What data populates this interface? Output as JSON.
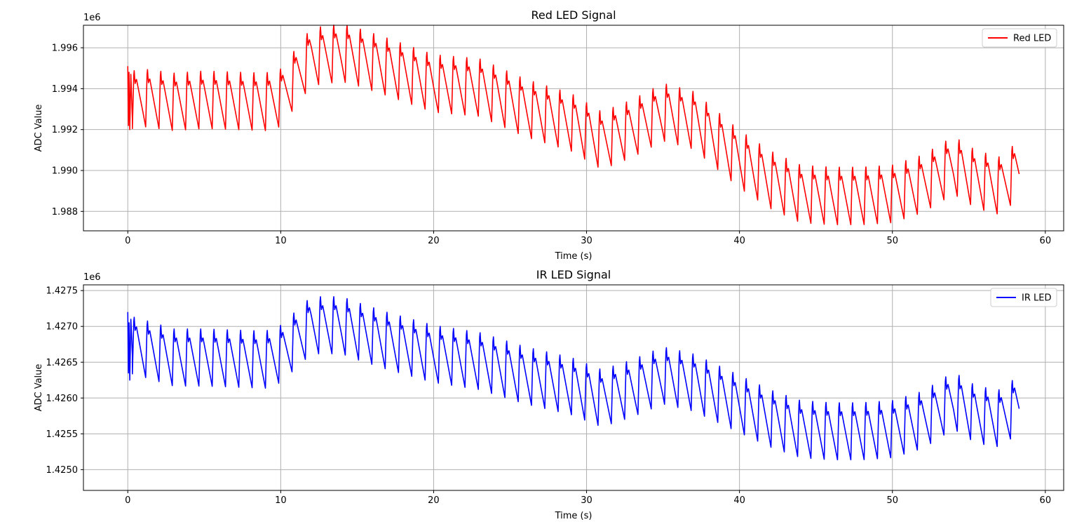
{
  "chart_data": [
    {
      "type": "line",
      "title": "Red LED Signal",
      "xlabel": "Time (s)",
      "ylabel": "ADC Value",
      "offset_label": "1e6",
      "xlim": [
        -2.9,
        61.2
      ],
      "ylim": [
        1.98705,
        1.9971
      ],
      "xticks": [
        0,
        10,
        20,
        30,
        40,
        50,
        60
      ],
      "xtick_labels": [
        "0",
        "10",
        "20",
        "30",
        "40",
        "50",
        "60"
      ],
      "yticks": [
        1.988,
        1.99,
        1.992,
        1.994,
        1.996
      ],
      "ytick_labels": [
        "1.988",
        "1.990",
        "1.992",
        "1.994",
        "1.996"
      ],
      "grid": true,
      "legend_position": "top-right",
      "x_end": 58.3,
      "series": [
        {
          "name": "Red LED",
          "color": "#ff0000",
          "baseline_points": [
            [
              0.3,
              1.9934
            ],
            [
              1,
              1.9935
            ],
            [
              3,
              1.9933
            ],
            [
              5,
              1.9934
            ],
            [
              9,
              1.9933
            ],
            [
              10,
              1.9935
            ],
            [
              12,
              1.9955
            ],
            [
              14,
              1.9957
            ],
            [
              15,
              1.9955
            ],
            [
              17,
              1.995
            ],
            [
              20,
              1.9942
            ],
            [
              23,
              1.994
            ],
            [
              26,
              1.993
            ],
            [
              29,
              1.9923
            ],
            [
              31,
              1.9914
            ],
            [
              33,
              1.992
            ],
            [
              35,
              1.9928
            ],
            [
              37,
              1.9924
            ],
            [
              40,
              1.9905
            ],
            [
              42,
              1.9895
            ],
            [
              44,
              1.9888
            ],
            [
              46,
              1.9887
            ],
            [
              48,
              1.9887
            ],
            [
              50,
              1.9888
            ],
            [
              52,
              1.9893
            ],
            [
              54,
              1.9902
            ],
            [
              55.5,
              1.9895
            ],
            [
              57,
              1.9892
            ],
            [
              58.3,
              1.99
            ]
          ],
          "pulse_amplitude": 0.003,
          "pulse_period_s": 0.87,
          "start_transient": [
            [
              0.0,
              1.9951
            ],
            [
              0.04,
              1.9922
            ],
            [
              0.08,
              1.9948
            ],
            [
              0.13,
              1.992
            ],
            [
              0.2,
              1.9947
            ],
            [
              0.3,
              1.9925
            ]
          ]
        }
      ]
    },
    {
      "type": "line",
      "title": "IR LED Signal",
      "xlabel": "Time (s)",
      "ylabel": "ADC Value",
      "offset_label": "1e6",
      "xlim": [
        -2.9,
        61.2
      ],
      "ylim": [
        1.42471,
        1.42758
      ],
      "xticks": [
        0,
        10,
        20,
        30,
        40,
        50,
        60
      ],
      "xtick_labels": [
        "0",
        "10",
        "20",
        "30",
        "40",
        "50",
        "60"
      ],
      "yticks": [
        1.425,
        1.4255,
        1.426,
        1.4265,
        1.427,
        1.4275
      ],
      "ytick_labels": [
        "1.4250",
        "1.4255",
        "1.4260",
        "1.4265",
        "1.4270",
        "1.4275"
      ],
      "grid": true,
      "legend_position": "top-right",
      "x_end": 58.3,
      "series": [
        {
          "name": "IR LED",
          "color": "#0000ff",
          "baseline_points": [
            [
              0.3,
              1.42672
            ],
            [
              1,
              1.42668
            ],
            [
              3,
              1.42655
            ],
            [
              5,
              1.42655
            ],
            [
              9,
              1.42652
            ],
            [
              10,
              1.4266
            ],
            [
              12,
              1.427
            ],
            [
              14,
              1.427
            ],
            [
              15,
              1.42692
            ],
            [
              17,
              1.42678
            ],
            [
              20,
              1.4266
            ],
            [
              23,
              1.4265
            ],
            [
              26,
              1.4263
            ],
            [
              29,
              1.42615
            ],
            [
              31,
              1.42598
            ],
            [
              33,
              1.42612
            ],
            [
              35,
              1.4263
            ],
            [
              37,
              1.4262
            ],
            [
              40,
              1.4259
            ],
            [
              42,
              1.4257
            ],
            [
              44,
              1.42555
            ],
            [
              46,
              1.42552
            ],
            [
              48,
              1.42552
            ],
            [
              50,
              1.42555
            ],
            [
              52,
              1.42568
            ],
            [
              54,
              1.42595
            ],
            [
              55.5,
              1.42575
            ],
            [
              57,
              1.4257
            ],
            [
              58.3,
              1.4259
            ]
          ],
          "pulse_amplitude": 0.00085,
          "pulse_period_s": 0.87,
          "start_transient": [
            [
              0.0,
              1.4272
            ],
            [
              0.04,
              1.42635
            ],
            [
              0.08,
              1.42705
            ],
            [
              0.13,
              1.42625
            ],
            [
              0.2,
              1.4271
            ],
            [
              0.3,
              1.4266
            ]
          ]
        }
      ]
    }
  ]
}
